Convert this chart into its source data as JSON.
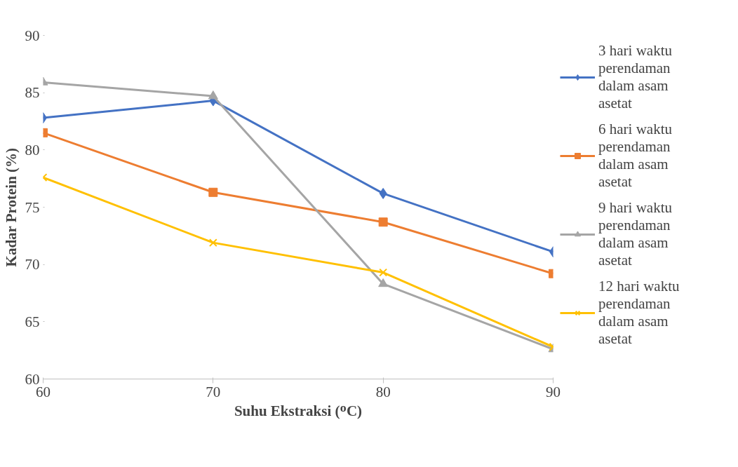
{
  "chart_data": {
    "type": "line",
    "xlabel": "Suhu Ekstraksi (ᴼC)",
    "ylabel": "Kadar Protein (%)",
    "x": [
      60,
      70,
      80,
      90
    ],
    "xlim": [
      60,
      90
    ],
    "xticks": [
      60,
      70,
      80,
      90
    ],
    "ylim": [
      60,
      90
    ],
    "yticks": [
      60,
      65,
      70,
      75,
      80,
      85,
      90
    ],
    "grid": false,
    "legend": "right",
    "series": [
      {
        "name": "3 hari waktu perendaman dalam asam asetat",
        "color": "#4472c4",
        "marker": "diamond",
        "values": [
          82.8,
          84.3,
          76.2,
          71.1
        ]
      },
      {
        "name": "6 hari waktu perendaman dalam asam asetat",
        "color": "#ed7d31",
        "marker": "square",
        "values": [
          81.5,
          76.3,
          73.7,
          69.2
        ]
      },
      {
        "name": "9 hari waktu perendaman dalam asam asetat",
        "color": "#a5a5a5",
        "marker": "triangle",
        "values": [
          85.9,
          84.7,
          68.3,
          62.6
        ]
      },
      {
        "name": "12 hari waktu perendaman dalam asam asetat",
        "color": "#ffc000",
        "marker": "x",
        "values": [
          77.6,
          71.9,
          69.3,
          62.8
        ]
      }
    ]
  }
}
